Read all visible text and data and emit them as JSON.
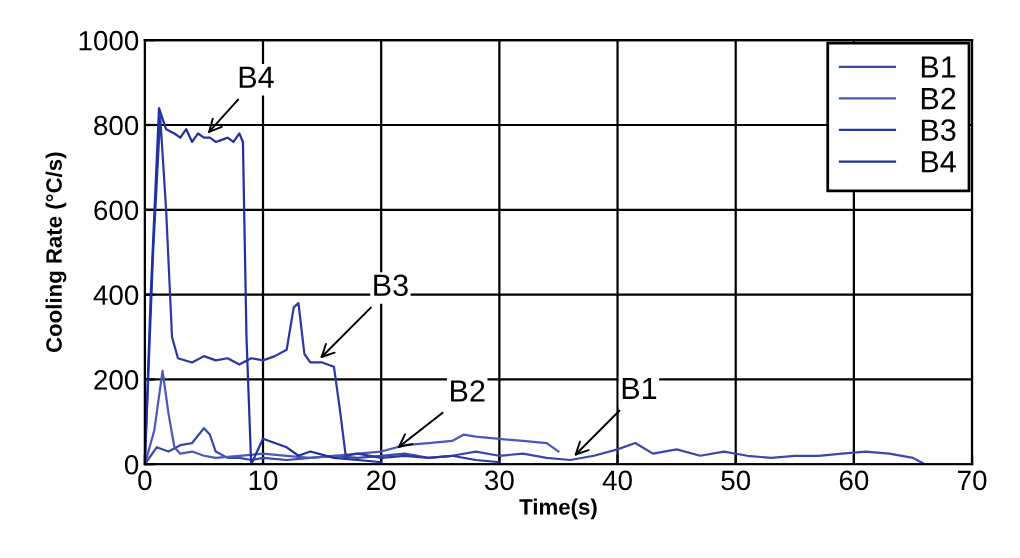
{
  "chart_data": {
    "type": "line",
    "xlabel": "Time(s)",
    "ylabel": "Cooling Rate (°C/s)",
    "xlim": [
      0,
      70
    ],
    "ylim": [
      0,
      1000
    ],
    "xticks": [
      0,
      10,
      20,
      30,
      40,
      50,
      60,
      70
    ],
    "yticks": [
      0,
      200,
      400,
      600,
      800,
      1000
    ],
    "grid": true,
    "legend": "top right",
    "line_style": "solid",
    "series": [
      {
        "name": "B1",
        "color": "#3a48a8",
        "x": [
          0,
          1,
          2,
          3,
          4,
          5,
          5.5,
          6,
          7,
          8,
          9,
          10,
          12,
          14,
          16,
          18,
          20,
          22,
          24,
          26,
          28,
          30,
          32,
          34,
          36,
          38,
          40,
          41.5,
          43,
          45,
          47,
          49,
          51,
          53,
          55,
          57,
          59,
          61,
          63,
          65,
          66
        ],
        "values": [
          0,
          40,
          30,
          45,
          50,
          85,
          70,
          30,
          15,
          15,
          10,
          15,
          10,
          15,
          20,
          15,
          20,
          25,
          15,
          20,
          30,
          20,
          25,
          15,
          10,
          20,
          35,
          50,
          25,
          35,
          20,
          30,
          20,
          15,
          20,
          20,
          25,
          30,
          25,
          15,
          0
        ]
      },
      {
        "name": "B2",
        "color": "#4a58b8",
        "x": [
          0,
          0.8,
          1.5,
          2,
          2.5,
          3,
          4,
          5,
          6,
          8,
          10,
          12,
          14,
          16,
          18,
          20,
          22,
          24,
          26,
          27,
          28,
          30,
          32,
          34,
          35
        ],
        "values": [
          0,
          80,
          220,
          120,
          40,
          25,
          30,
          20,
          15,
          20,
          25,
          20,
          15,
          20,
          25,
          30,
          45,
          50,
          55,
          70,
          65,
          60,
          55,
          50,
          30
        ]
      },
      {
        "name": "B3",
        "color": "#2a38a0",
        "x": [
          0,
          0.7,
          1.3,
          1.8,
          2.3,
          2.8,
          4,
          5,
          6,
          7,
          8,
          9,
          10,
          11,
          12,
          12.6,
          13,
          13.5,
          14,
          15,
          16,
          16.5,
          17,
          18,
          20,
          22,
          24,
          26,
          28,
          30
        ],
        "values": [
          0,
          500,
          820,
          600,
          300,
          250,
          240,
          255,
          245,
          250,
          235,
          250,
          245,
          255,
          270,
          370,
          380,
          260,
          240,
          240,
          230,
          130,
          20,
          25,
          15,
          20,
          15,
          20,
          10,
          5
        ]
      },
      {
        "name": "B4",
        "color": "#2030a0",
        "x": [
          0,
          0.5,
          1.2,
          1.8,
          2.5,
          3,
          3.5,
          4,
          4.5,
          5,
          5.5,
          6,
          6.5,
          7,
          7.5,
          8,
          8.3,
          8.6,
          9,
          10,
          11,
          12,
          13,
          14,
          16,
          18,
          20
        ],
        "values": [
          0,
          400,
          840,
          790,
          780,
          770,
          790,
          760,
          780,
          770,
          770,
          760,
          765,
          770,
          760,
          780,
          760,
          300,
          0,
          60,
          50,
          40,
          20,
          30,
          15,
          10,
          5
        ]
      }
    ],
    "annotations": [
      {
        "text": "B4",
        "x": 5,
        "y": 770
      },
      {
        "text": "B3",
        "x": 14.5,
        "y": 240
      },
      {
        "text": "B2",
        "x": 21,
        "y": 30
      },
      {
        "text": "B1",
        "x": 36,
        "y": 10
      }
    ]
  }
}
